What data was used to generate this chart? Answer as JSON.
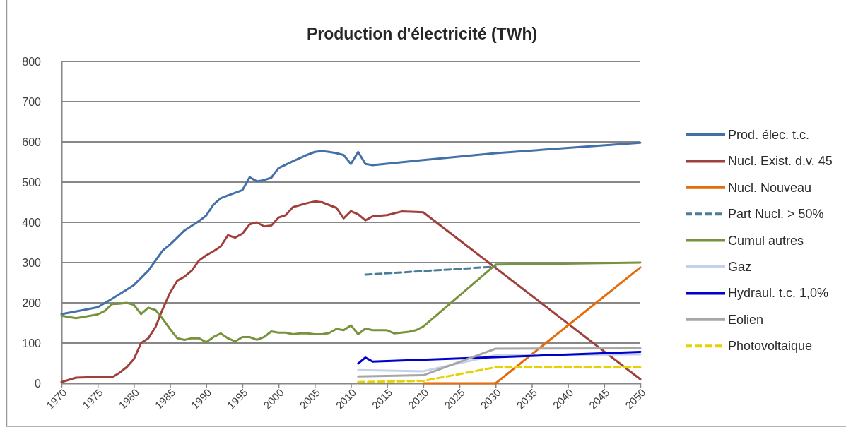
{
  "chart_data": {
    "type": "line",
    "title": "Production d'électricité (TWh)",
    "xlim": [
      1970,
      2050
    ],
    "xticks": [
      1970,
      1975,
      1980,
      1985,
      1990,
      1995,
      2000,
      2005,
      2010,
      2015,
      2020,
      2025,
      2030,
      2035,
      2040,
      2045,
      2050
    ],
    "ylim": [
      0,
      800
    ],
    "yticks": [
      0,
      100,
      200,
      300,
      400,
      500,
      600,
      700,
      800
    ],
    "grid": "y",
    "legend": "right",
    "series": [
      {
        "name": "Prod. élec. t.c.",
        "color": "#4470a8",
        "x": [
          1970,
          1973,
          1975,
          1977,
          1980,
          1982,
          1984,
          1985,
          1987,
          1989,
          1990,
          1991,
          1992,
          1993,
          1995,
          1996,
          1997,
          1998,
          1999,
          2000,
          2002,
          2004,
          2005,
          2006,
          2007,
          2008,
          2009,
          2010,
          2011,
          2012,
          2013,
          2020,
          2030,
          2040,
          2050
        ],
        "values": [
          172,
          182,
          189,
          210,
          244,
          280,
          330,
          345,
          380,
          403,
          417,
          444,
          460,
          467,
          480,
          512,
          502,
          505,
          511,
          535,
          552,
          568,
          575,
          577,
          575,
          572,
          567,
          545,
          575,
          545,
          542,
          555,
          572,
          585,
          598
        ]
      },
      {
        "name": "Nucl. Exist. d.v. 45",
        "color": "#a0403c",
        "x": [
          1970,
          1972,
          1975,
          1977,
          1978,
          1979,
          1980,
          1981,
          1982,
          1983,
          1984,
          1985,
          1986,
          1987,
          1988,
          1989,
          1990,
          1991,
          1992,
          1993,
          1994,
          1995,
          1996,
          1997,
          1998,
          1999,
          2000,
          2001,
          2002,
          2003,
          2004,
          2005,
          2006,
          2007,
          2008,
          2009,
          2010,
          2011,
          2012,
          2013,
          2015,
          2017,
          2019,
          2020,
          2050
        ],
        "values": [
          3,
          14,
          16,
          15,
          26,
          40,
          60,
          100,
          112,
          140,
          185,
          225,
          255,
          265,
          280,
          305,
          318,
          328,
          340,
          368,
          362,
          372,
          395,
          400,
          390,
          392,
          412,
          418,
          438,
          443,
          448,
          452,
          450,
          443,
          436,
          410,
          428,
          420,
          405,
          415,
          418,
          427,
          426,
          425,
          10
        ]
      },
      {
        "name": "Nucl. Nouveau",
        "color": "#e46c0a",
        "x": [
          2020,
          2030,
          2050
        ],
        "values": [
          0,
          0,
          288
        ]
      },
      {
        "name": "Part Nucl. > 50%",
        "color": "#4b7d99",
        "line_style": "dashed",
        "x": [
          2012,
          2030
        ],
        "values": [
          270,
          290
        ]
      },
      {
        "name": "Cumul autres",
        "color": "#77933c",
        "x": [
          1970,
          1971,
          1972,
          1973,
          1974,
          1975,
          1976,
          1977,
          1978,
          1979,
          1980,
          1981,
          1982,
          1983,
          1984,
          1985,
          1986,
          1987,
          1988,
          1989,
          1990,
          1991,
          1992,
          1993,
          1994,
          1995,
          1996,
          1997,
          1998,
          1999,
          2000,
          2001,
          2002,
          2003,
          2004,
          2005,
          2006,
          2007,
          2008,
          2009,
          2010,
          2011,
          2012,
          2013,
          2014,
          2015,
          2016,
          2017,
          2018,
          2019,
          2020,
          2030,
          2050
        ],
        "values": [
          168,
          165,
          162,
          165,
          168,
          171,
          180,
          197,
          198,
          200,
          195,
          172,
          188,
          182,
          160,
          135,
          112,
          108,
          112,
          112,
          102,
          115,
          124,
          112,
          104,
          115,
          115,
          108,
          115,
          129,
          126,
          126,
          122,
          124,
          124,
          122,
          122,
          125,
          135,
          132,
          144,
          122,
          136,
          132,
          132,
          132,
          124,
          126,
          128,
          132,
          141,
          295,
          300
        ]
      },
      {
        "name": "Gaz",
        "color": "#c5d0ea",
        "x": [
          2011,
          2020,
          2030,
          2050
        ],
        "values": [
          33,
          30,
          70,
          72
        ]
      },
      {
        "name": "Hydraul. t.c. 1,0%",
        "color": "#0000cc",
        "x": [
          2011,
          2012,
          2013,
          2050
        ],
        "values": [
          49,
          64,
          54,
          78
        ]
      },
      {
        "name": "Eolien",
        "color": "#a6a6a6",
        "x": [
          2011,
          2020,
          2030,
          2050
        ],
        "values": [
          17,
          20,
          86,
          87
        ]
      },
      {
        "name": "Photovoltaique",
        "color": "#e6d200",
        "line_style": "dashed",
        "x": [
          2011,
          2020,
          2030,
          2050
        ],
        "values": [
          3,
          6,
          40,
          40
        ]
      }
    ]
  }
}
